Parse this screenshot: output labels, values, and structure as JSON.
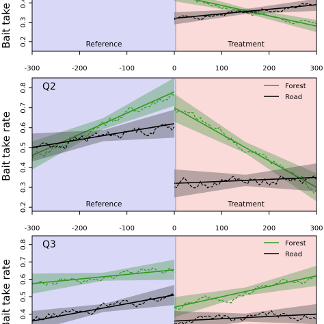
{
  "chart_data": [
    {
      "type": "line",
      "panel_label": "",
      "ylabel": "Bait take rate",
      "xlim": [
        -300,
        300
      ],
      "ylim": [
        0.15,
        0.45
      ],
      "x_ticks": [
        -300,
        -200,
        -100,
        0,
        100,
        200,
        300
      ],
      "y_ticks": [
        0.2,
        0.3,
        0.4
      ],
      "period_labels": [
        "Reference",
        "Treatment"
      ],
      "legend": [],
      "grid": false,
      "series": [
        {
          "name": "Forest",
          "color": "#2e9a1e",
          "fit": {
            "x": [
              0,
              300
            ],
            "y": [
              0.44,
              0.28
            ]
          }
        },
        {
          "name": "Road",
          "color": "#000000",
          "fit": {
            "x": [
              0,
              300
            ],
            "y": [
              0.32,
              0.39
            ]
          }
        }
      ]
    },
    {
      "type": "line",
      "panel_label": "Q2",
      "ylabel": "Bait take rate",
      "xlim": [
        -300,
        300
      ],
      "ylim": [
        0.18,
        0.85
      ],
      "x_ticks": [
        -300,
        -200,
        -100,
        0,
        100,
        200,
        300
      ],
      "y_ticks": [
        0.2,
        0.3,
        0.4,
        0.5,
        0.6,
        0.7,
        0.8
      ],
      "period_labels": [
        "Reference",
        "Treatment"
      ],
      "legend": [
        "Forest",
        "Road"
      ],
      "grid": false,
      "series": [
        {
          "name": "Forest",
          "color": "#2e9a1e",
          "fit": {
            "x": [
              -300,
              0,
              0,
              300
            ],
            "y": [
              0.46,
              0.78,
              0.7,
              0.3
            ]
          }
        },
        {
          "name": "Road",
          "color": "#000000",
          "fit": {
            "x": [
              -300,
              0,
              0,
              300
            ],
            "y": [
              0.5,
              0.62,
              0.32,
              0.35
            ]
          }
        }
      ]
    },
    {
      "type": "line",
      "panel_label": "Q3",
      "ylabel": "Bait take rate",
      "xlim": [
        -300,
        300
      ],
      "ylim": [
        0.3,
        0.85
      ],
      "x_ticks": [],
      "y_ticks": [
        0.4,
        0.5,
        0.6,
        0.7,
        0.8
      ],
      "period_labels": [],
      "legend": [
        "Forest",
        "Road"
      ],
      "grid": false,
      "series": [
        {
          "name": "Forest",
          "color": "#2e9a1e",
          "fit": {
            "x": [
              -300,
              0,
              0,
              300
            ],
            "y": [
              0.575,
              0.655,
              0.44,
              0.62
            ]
          }
        },
        {
          "name": "Road",
          "color": "#000000",
          "fit": {
            "x": [
              -300,
              0,
              0,
              300
            ],
            "y": [
              0.36,
              0.51,
              0.36,
              0.4
            ]
          }
        }
      ]
    }
  ]
}
